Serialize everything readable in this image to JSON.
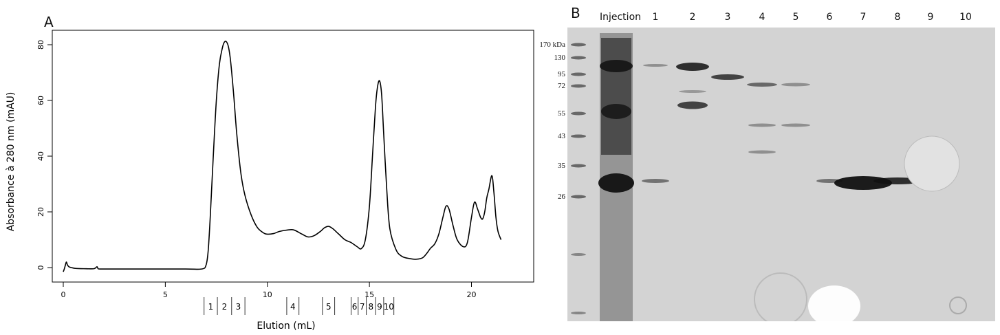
{
  "panels": {
    "a_letter": "A",
    "b_letter": "B"
  },
  "chart_data": {
    "type": "line",
    "xlabel": "Elution (mL)",
    "ylabel": "Absorbance à 280 nm (mAU)",
    "xlim": [
      0,
      22
    ],
    "ylim": [
      0,
      85
    ],
    "x_ticks": [
      0,
      5,
      10,
      15,
      20
    ],
    "y_ticks": [
      0,
      20,
      40,
      60,
      80
    ],
    "series": [
      {
        "x": [
          0.0,
          0.05,
          0.1,
          0.15,
          0.2,
          0.25,
          0.3,
          0.4,
          0.6,
          1.0,
          1.5,
          1.65,
          1.7,
          1.8,
          2.5,
          4.0,
          6.0,
          6.8,
          7.0,
          7.1,
          7.2,
          7.35,
          7.5,
          7.65,
          7.8,
          7.9,
          8.0,
          8.1,
          8.2,
          8.35,
          8.5,
          8.7,
          8.9,
          9.2,
          9.5,
          9.8,
          10.0,
          10.3,
          10.6,
          11.0,
          11.3,
          11.7,
          12.0,
          12.3,
          12.6,
          12.8,
          13.0,
          13.2,
          13.5,
          13.8,
          14.1,
          14.4,
          14.6,
          14.8,
          15.0,
          15.15,
          15.3,
          15.4,
          15.5,
          15.6,
          15.7,
          15.85,
          16.0,
          16.3,
          16.6,
          17.0,
          17.3,
          17.6,
          17.8,
          18.0,
          18.2,
          18.4,
          18.6,
          18.75,
          18.9,
          19.1,
          19.3,
          19.6,
          19.8,
          20.0,
          20.15,
          20.3,
          20.45,
          20.55,
          20.65,
          20.75,
          20.85,
          21.0,
          21.1,
          21.2,
          21.3,
          21.45
        ],
        "y": [
          -1.5,
          -0.5,
          0.8,
          2.0,
          1.0,
          0.5,
          0.2,
          0.0,
          -0.3,
          -0.4,
          -0.4,
          0.3,
          -0.3,
          -0.5,
          -0.5,
          -0.5,
          -0.5,
          -0.5,
          1.0,
          6.0,
          18.0,
          40.0,
          60.0,
          73.0,
          79.0,
          81.0,
          81.0,
          79.0,
          74.0,
          62.0,
          48.0,
          34.0,
          26.0,
          19.0,
          14.5,
          12.5,
          12.0,
          12.2,
          13.0,
          13.5,
          13.5,
          12.0,
          11.0,
          11.5,
          13.0,
          14.3,
          14.8,
          14.0,
          12.0,
          10.0,
          9.0,
          7.5,
          6.8,
          10.0,
          22.0,
          40.0,
          58.0,
          65.0,
          67.0,
          62.0,
          48.0,
          28.0,
          14.0,
          6.5,
          4.0,
          3.2,
          3.0,
          3.5,
          5.0,
          7.0,
          8.5,
          12.0,
          18.0,
          22.0,
          21.0,
          15.0,
          10.0,
          7.5,
          9.0,
          18.0,
          23.5,
          21.0,
          18.0,
          17.5,
          20.0,
          25.0,
          28.0,
          33.0,
          27.0,
          18.0,
          13.0,
          10.0
        ]
      }
    ],
    "fractions": [
      {
        "label": "1",
        "from": 6.9,
        "to": 7.55
      },
      {
        "label": "2",
        "from": 7.55,
        "to": 8.25
      },
      {
        "label": "3",
        "from": 8.25,
        "to": 8.9
      },
      {
        "label": "4",
        "from": 10.95,
        "to": 11.55
      },
      {
        "label": "5",
        "from": 12.7,
        "to": 13.3
      },
      {
        "label": "6",
        "from": 14.1,
        "to": 14.45
      },
      {
        "label": "7",
        "from": 14.45,
        "to": 14.85
      },
      {
        "label": "8",
        "from": 14.85,
        "to": 15.3
      },
      {
        "label": "9",
        "from": 15.3,
        "to": 15.7
      },
      {
        "label": "10",
        "from": 15.7,
        "to": 16.2
      }
    ],
    "line_color": "#000000"
  },
  "gel": {
    "lane_labels": [
      {
        "label": "Injection",
        "lane": 1
      },
      {
        "label": "1",
        "lane": 2
      },
      {
        "label": "2",
        "lane": 3
      },
      {
        "label": "3",
        "lane": 4
      },
      {
        "label": "4",
        "lane": 5
      },
      {
        "label": "5",
        "lane": 6
      },
      {
        "label": "6",
        "lane": 7
      },
      {
        "label": "7",
        "lane": 8
      },
      {
        "label": "8",
        "lane": 9
      },
      {
        "label": "9",
        "lane": 10
      },
      {
        "label": "10",
        "lane": 11
      }
    ],
    "mw_markers": [
      {
        "label": "170 kDa",
        "kda": 170
      },
      {
        "label": "130",
        "kda": 130
      },
      {
        "label": "95",
        "kda": 95
      },
      {
        "label": "72",
        "kda": 72
      },
      {
        "label": "55",
        "kda": 55
      },
      {
        "label": "43",
        "kda": 43
      },
      {
        "label": "35",
        "kda": 35
      },
      {
        "label": "26",
        "kda": 26
      }
    ],
    "background_color": "#d3d3d3"
  }
}
